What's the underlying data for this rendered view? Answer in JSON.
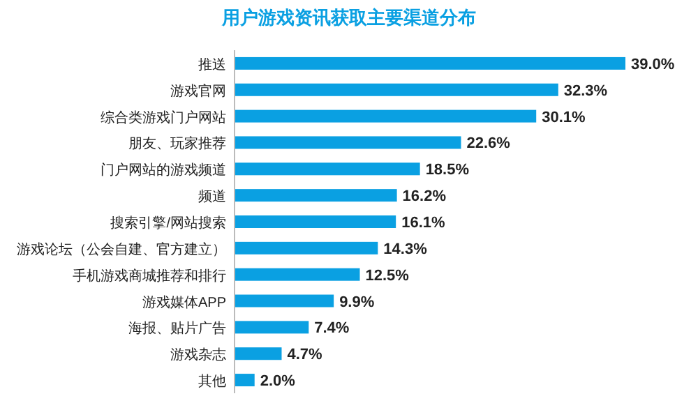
{
  "chart_data": {
    "type": "bar",
    "orientation": "horizontal",
    "title": "用户游戏资讯获取主要渠道分布",
    "categories": [
      "推送",
      "游戏官网",
      "综合类游戏门户网站",
      "朋友、玩家推荐",
      "门户网站的游戏频道",
      "频道",
      "搜索引擎/网站搜索",
      "游戏论坛（公会自建、官方建立）",
      "手机游戏商城推荐和排行",
      "游戏媒体APP",
      "海报、贴片广告",
      "游戏杂志",
      "其他"
    ],
    "values": [
      39.0,
      32.3,
      30.1,
      22.6,
      18.5,
      16.2,
      16.1,
      14.3,
      12.5,
      9.9,
      7.4,
      4.7,
      2.0
    ],
    "value_labels": [
      "39.0%",
      "32.3%",
      "30.1%",
      "22.6%",
      "18.5%",
      "16.2%",
      "16.1%",
      "14.3%",
      "12.5%",
      "9.9%",
      "7.4%",
      "4.7%",
      "2.0%"
    ],
    "color": "#0aa0e2"
  }
}
